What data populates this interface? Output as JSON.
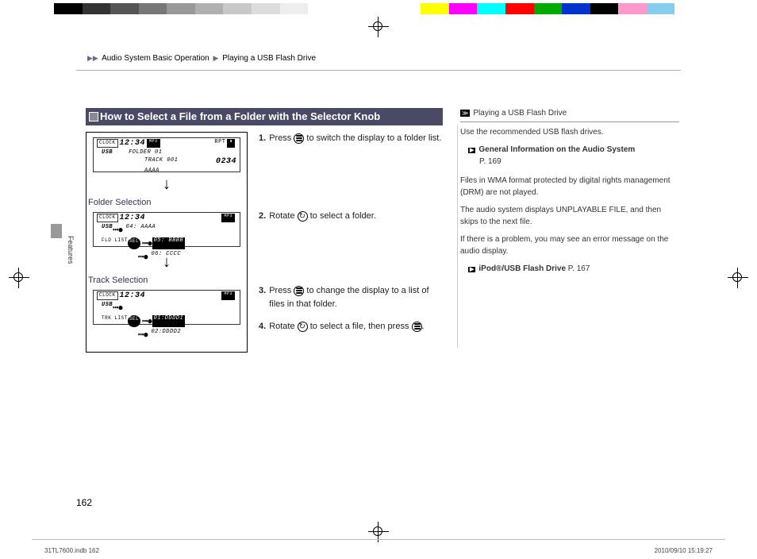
{
  "colorbar": [
    "#000000",
    "#333333",
    "#555555",
    "#777777",
    "#999999",
    "#b0b0b0",
    "#c8c8c8",
    "#dcdcdc",
    "#eeeeee",
    "#ffffff",
    "#ffffff",
    "#ffffff",
    "#ffffff",
    "#ffff00",
    "#ff00ff",
    "#00ffff",
    "#ff0000",
    "#00aa00",
    "#0033cc",
    "#000000",
    "#ff99cc",
    "#88ccee",
    "#ffffff"
  ],
  "breadcrumb": {
    "a": "Audio System Basic Operation",
    "b": "Playing a USB Flash Drive"
  },
  "title": "How to Select a File from a Folder with the Selector Knob",
  "lcd1": {
    "clock": "CLOCK",
    "time": "12:34",
    "mp3": "MP3",
    "rpt": "RPT",
    "usb": "USB",
    "l1": "FOLDER 01",
    "l2": "TRACK 001",
    "r": "0234",
    "l3": "AAAA"
  },
  "lcd2": {
    "clock": "CLOCK",
    "time": "12:34",
    "mp3": "MP3",
    "usb": "USB",
    "sub": "FLD LIST",
    "a": "04: AAAA",
    "b": "05: BBBB",
    "c": "06: CCCC"
  },
  "lcd3": {
    "clock": "CLOCK",
    "time": "12:34",
    "mp3": "MP3",
    "usb": "USB",
    "sub": "TRK LIST",
    "a": "01:DDDD1",
    "b": "02:DDDD2"
  },
  "labels": {
    "folder": "Folder Selection",
    "track": "Track Selection"
  },
  "steps": {
    "s1a": "Press ",
    "s1b": " to switch the display to a folder list.",
    "s2a": "Rotate ",
    "s2b": " to select a folder.",
    "s3a": "Press ",
    "s3b": " to change the display to a list of files in that folder.",
    "s4a": "Rotate ",
    "s4b": " to select a file, then press ",
    "s4c": "."
  },
  "nums": {
    "n1": "1.",
    "n2": "2.",
    "n3": "3.",
    "n4": "4."
  },
  "sidebar": {
    "head": "Playing a USB Flash Drive",
    "p1": "Use the recommended USB flash drives.",
    "link1": "General Information on the Audio System",
    "pg1": "P. 169",
    "p2": "Files in WMA format protected by digital rights management (DRM) are not played.",
    "p3": "The audio system displays UNPLAYABLE FILE, and then skips to the next file.",
    "p4": "If there is a problem, you may see an error message on the audio display.",
    "link2": "iPod®/USB Flash Drive",
    "pg2": "P. 167"
  },
  "sidetab": "Features",
  "pagenum": "162",
  "footer": {
    "left": "31TL7600.indb   162",
    "right": "2010/09/10   15:19:27"
  }
}
